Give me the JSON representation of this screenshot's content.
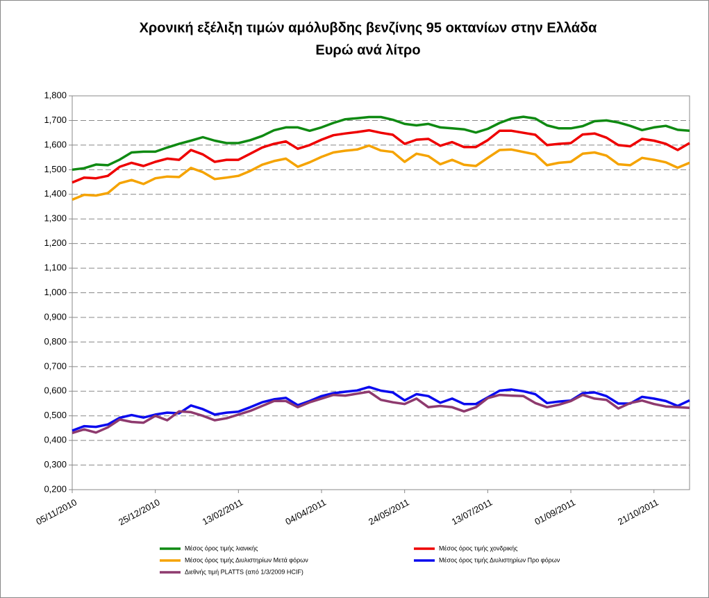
{
  "chart_data": {
    "type": "line",
    "title": "Χρονική εξέλιξη τιμών αμόλυβδης βενζίνης 95 οκτανίων στην Ελλάδα",
    "subtitle": "Ευρώ ανά λίτρο",
    "categories": [
      "05/11/2010",
      null,
      null,
      null,
      null,
      null,
      null,
      "25/12/2010",
      null,
      null,
      null,
      null,
      null,
      null,
      "13/02/2011",
      null,
      null,
      null,
      null,
      null,
      null,
      "04/04/2011",
      null,
      null,
      null,
      null,
      null,
      null,
      "24/05/2011",
      null,
      null,
      null,
      null,
      null,
      null,
      "13/07/2011",
      null,
      null,
      null,
      null,
      null,
      null,
      "01/09/2011",
      null,
      null,
      null,
      null,
      null,
      null,
      "21/10/2011",
      null,
      null,
      null
    ],
    "series": [
      {
        "name": "Μέσος όρος τιμής λιανικής",
        "color": "#0f8a12",
        "values": [
          1.5,
          1.506,
          1.521,
          1.518,
          1.541,
          1.57,
          1.573,
          1.573,
          1.59,
          1.605,
          1.618,
          1.632,
          1.618,
          1.608,
          1.608,
          1.62,
          1.637,
          1.66,
          1.672,
          1.672,
          1.658,
          1.672,
          1.69,
          1.705,
          1.709,
          1.714,
          1.714,
          1.703,
          1.686,
          1.68,
          1.686,
          1.672,
          1.668,
          1.664,
          1.651,
          1.666,
          1.69,
          1.708,
          1.715,
          1.708,
          1.68,
          1.668,
          1.668,
          1.677,
          1.697,
          1.7,
          1.692,
          1.678,
          1.661,
          1.672,
          1.678,
          1.662,
          1.658
        ]
      },
      {
        "name": "Μέσος όρος τιμής χονδρικής",
        "color": "#ee0000",
        "values": [
          1.448,
          1.468,
          1.465,
          1.475,
          1.512,
          1.528,
          1.515,
          1.532,
          1.545,
          1.54,
          1.58,
          1.562,
          1.532,
          1.54,
          1.54,
          1.565,
          1.59,
          1.605,
          1.615,
          1.585,
          1.6,
          1.622,
          1.64,
          1.647,
          1.653,
          1.66,
          1.65,
          1.642,
          1.605,
          1.622,
          1.625,
          1.597,
          1.612,
          1.592,
          1.592,
          1.62,
          1.658,
          1.658,
          1.65,
          1.642,
          1.6,
          1.605,
          1.608,
          1.643,
          1.647,
          1.63,
          1.6,
          1.595,
          1.625,
          1.618,
          1.605,
          1.58,
          1.608
        ]
      },
      {
        "name": "Μέσος όρος τιμής Διυλιστηρίων Μετά φόρων",
        "color": "#f5a300",
        "values": [
          1.378,
          1.398,
          1.395,
          1.405,
          1.445,
          1.458,
          1.442,
          1.465,
          1.472,
          1.47,
          1.507,
          1.49,
          1.462,
          1.468,
          1.475,
          1.495,
          1.52,
          1.535,
          1.545,
          1.512,
          1.53,
          1.552,
          1.57,
          1.577,
          1.582,
          1.598,
          1.578,
          1.572,
          1.532,
          1.565,
          1.555,
          1.522,
          1.54,
          1.52,
          1.515,
          1.548,
          1.58,
          1.582,
          1.572,
          1.562,
          1.518,
          1.528,
          1.532,
          1.565,
          1.57,
          1.557,
          1.522,
          1.518,
          1.548,
          1.54,
          1.53,
          1.508,
          1.528
        ]
      },
      {
        "name": "Μέσος όρος τιμής Διυλιστηρίων Προ φόρων",
        "color": "#0a0aee",
        "values": [
          0.44,
          0.458,
          0.455,
          0.465,
          0.492,
          0.503,
          0.493,
          0.505,
          0.513,
          0.51,
          0.542,
          0.527,
          0.505,
          0.513,
          0.517,
          0.535,
          0.555,
          0.567,
          0.573,
          0.543,
          0.56,
          0.58,
          0.592,
          0.598,
          0.603,
          0.617,
          0.602,
          0.595,
          0.563,
          0.588,
          0.58,
          0.553,
          0.57,
          0.548,
          0.548,
          0.575,
          0.602,
          0.607,
          0.6,
          0.588,
          0.552,
          0.558,
          0.562,
          0.592,
          0.595,
          0.58,
          0.55,
          0.55,
          0.577,
          0.57,
          0.56,
          0.54,
          0.563
        ]
      },
      {
        "name": "Διεθνής τιμή PLATTS (από 1/3/2009 HCIF)",
        "color": "#8e3a6e",
        "values": [
          0.43,
          0.445,
          0.432,
          0.453,
          0.485,
          0.475,
          0.472,
          0.5,
          0.482,
          0.518,
          0.515,
          0.5,
          0.482,
          0.49,
          0.505,
          0.52,
          0.54,
          0.56,
          0.56,
          0.535,
          0.555,
          0.57,
          0.585,
          0.582,
          0.59,
          0.598,
          0.565,
          0.555,
          0.548,
          0.57,
          0.535,
          0.54,
          0.535,
          0.518,
          0.535,
          0.572,
          0.585,
          0.582,
          0.58,
          0.552,
          0.535,
          0.545,
          0.56,
          0.585,
          0.57,
          0.565,
          0.53,
          0.552,
          0.562,
          0.548,
          0.538,
          0.535,
          0.532
        ]
      }
    ],
    "ylim": [
      0.2,
      1.8
    ],
    "yticks": [
      {
        "value": 0.2,
        "label": "0,200"
      },
      {
        "value": 0.3,
        "label": "0,300"
      },
      {
        "value": 0.4,
        "label": "0,400"
      },
      {
        "value": 0.5,
        "label": "0,500"
      },
      {
        "value": 0.6,
        "label": "0,600"
      },
      {
        "value": 0.7,
        "label": "0,700"
      },
      {
        "value": 0.8,
        "label": "0,800"
      },
      {
        "value": 0.9,
        "label": "0,900"
      },
      {
        "value": 1.0,
        "label": "1,000"
      },
      {
        "value": 1.1,
        "label": "1,100"
      },
      {
        "value": 1.2,
        "label": "1,200"
      },
      {
        "value": 1.3,
        "label": "1,300"
      },
      {
        "value": 1.4,
        "label": "1,400"
      },
      {
        "value": 1.5,
        "label": "1,500"
      },
      {
        "value": 1.6,
        "label": "1,600"
      },
      {
        "value": 1.7,
        "label": "1,700"
      },
      {
        "value": 1.8,
        "label": "1,800"
      }
    ],
    "grid": true
  }
}
